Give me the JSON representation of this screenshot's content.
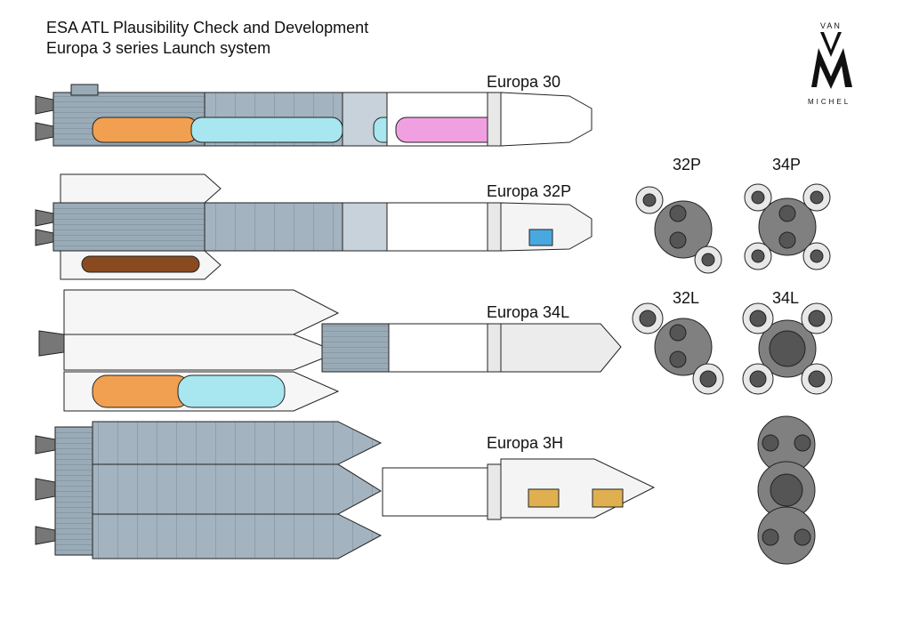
{
  "header": {
    "line1": "ESA ATL Plausibility Check and Development",
    "line2": "Europa 3 series Launch system"
  },
  "logo": {
    "top": "VAN",
    "bottom": "MICHEL"
  },
  "rockets": [
    {
      "name": "Europa 30"
    },
    {
      "name": "Europa 32P"
    },
    {
      "name": "Europa 34L"
    },
    {
      "name": "Europa 3H"
    }
  ],
  "cross_sections": [
    {
      "label": "32P"
    },
    {
      "label": "34P"
    },
    {
      "label": "32L"
    },
    {
      "label": "34L"
    }
  ],
  "colors": {
    "stage_blue_grey": "#9aabb8",
    "tank_orange": "#f0a050",
    "tank_cyan": "#a8e6f0",
    "tank_pink": "#f0a0e0",
    "srb_brown": "#8a4a20",
    "payload_blue": "#4aa8e0",
    "payload_gold": "#e0b050",
    "section_grey": "#808080"
  }
}
